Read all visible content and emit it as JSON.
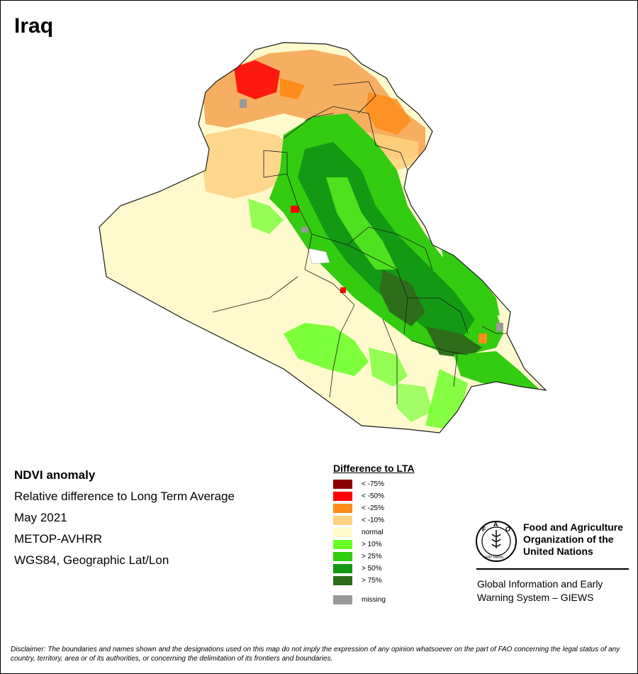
{
  "title": "Iraq",
  "info": {
    "product": "NDVI anomaly",
    "description": "Relative difference to Long Term Average",
    "period": "May 2021",
    "sensor": "METOP-AVHRR",
    "projection": "WGS84, Geographic Lat/Lon"
  },
  "legend": {
    "title": "Difference to LTA",
    "items": [
      {
        "label": "< -75%",
        "color": "#8b0000"
      },
      {
        "label": "< -50%",
        "color": "#ff0000"
      },
      {
        "label": "< -25%",
        "color": "#ff8c1a"
      },
      {
        "label": "< -10%",
        "color": "#ffd080"
      },
      {
        "label": "normal",
        "color": "#fffacd"
      },
      {
        "label": "> 10%",
        "color": "#66ff22"
      },
      {
        "label": "> 25%",
        "color": "#33cc11"
      },
      {
        "label": "> 50%",
        "color": "#149914"
      },
      {
        "label": "> 75%",
        "color": "#2e6e1a"
      }
    ],
    "missing": {
      "label": "missing",
      "color": "#999999"
    }
  },
  "organization": {
    "name_line1": "Food and Agriculture",
    "name_line2": "Organization of the",
    "name_line3": "United Nations",
    "logo_text": "FAO",
    "logo_motto": "FIAT PANIS",
    "system_line1": "Global Information and Early",
    "system_line2": "Warning System – GIEWS"
  },
  "disclaimer": "Disclaimer: The boundaries and names shown and the designations used on this map do not imply the expression of any opinion whatsoever on the part of FAO concerning the legal status of any country, territory, area or of its authorities, or concerning the delimitation of its frontiers and boundaries."
}
